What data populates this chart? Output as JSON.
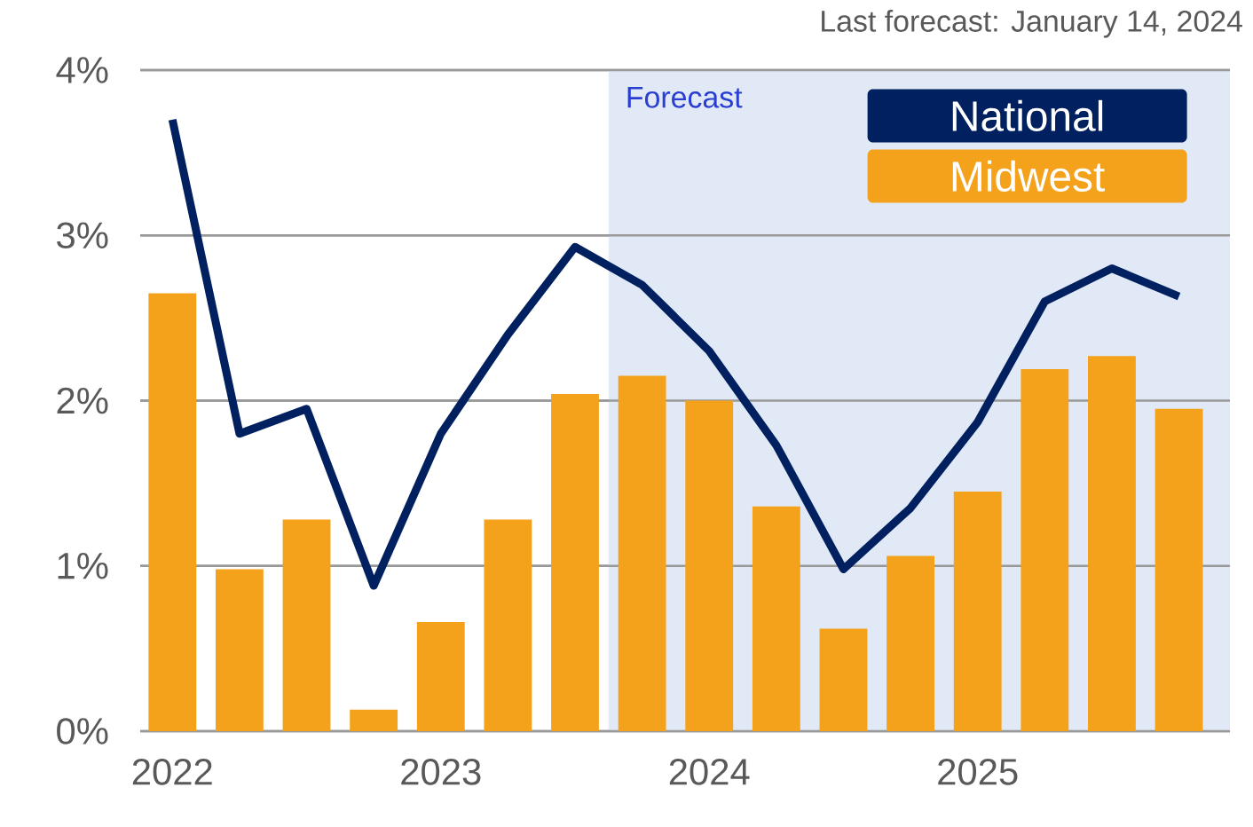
{
  "chart_data": {
    "type": "bar",
    "annotations": [
      "Last forecast: January 14, 2024"
    ],
    "x": [
      2022,
      2022.25,
      2022.5,
      2022.75,
      2023,
      2023.25,
      2023.5,
      2023.75,
      2024,
      2024.25,
      2024.5,
      2024.75,
      2025,
      2025.25,
      2025.5,
      2025.75
    ],
    "series": [
      {
        "name": "National",
        "type": "line",
        "color": "#002060",
        "values": [
          3.7,
          1.8,
          1.95,
          0.88,
          1.8,
          2.4,
          2.93,
          2.7,
          2.3,
          1.73,
          0.98,
          1.35,
          1.87,
          2.6,
          2.8,
          2.63
        ]
      },
      {
        "name": "Midwest",
        "color": "#f4a11b",
        "values": [
          2.65,
          0.98,
          1.28,
          0.13,
          0.66,
          1.28,
          2.04,
          2.15,
          2.0,
          1.36,
          0.62,
          1.06,
          1.45,
          2.19,
          2.27,
          1.95
        ]
      }
    ],
    "xlim": [
      2021.88,
      2025.94
    ],
    "xticks": [
      2022,
      2023,
      2024,
      2025
    ],
    "ylim": [
      0,
      4
    ],
    "yticks": [
      {
        "value": 0,
        "label": "0%"
      },
      {
        "value": 1,
        "label": "1%"
      },
      {
        "value": 2,
        "label": "2%"
      },
      {
        "value": 3,
        "label": "3%"
      },
      {
        "value": 4,
        "label": "4%"
      }
    ],
    "bands": [
      {
        "axis": "x",
        "from": 2023.625,
        "to": 2025.94,
        "label": "Forecast",
        "color": "#e1e9f6"
      }
    ],
    "grid": "y",
    "legend": "top right"
  }
}
